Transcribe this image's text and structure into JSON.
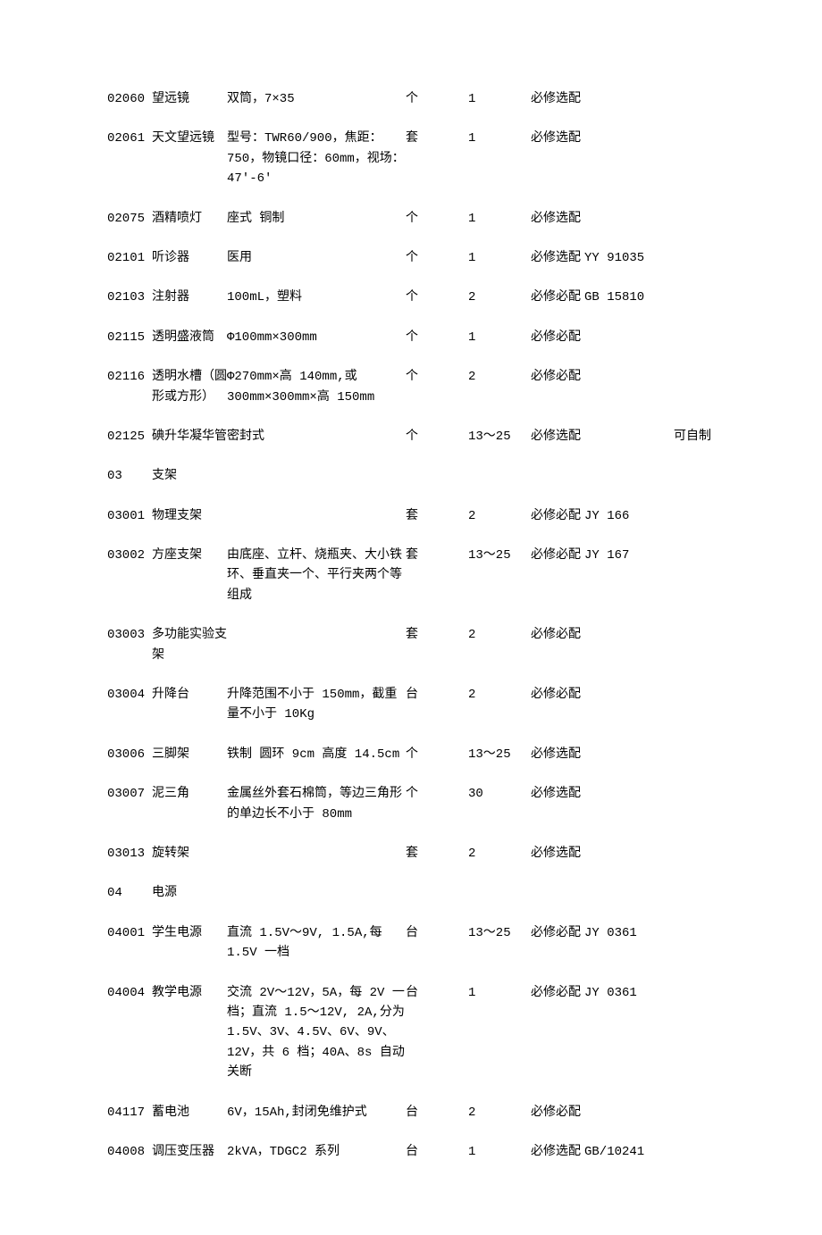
{
  "rows": [
    {
      "code": "02060",
      "name": "望远镜",
      "spec": "双筒，7×35",
      "unit": "个",
      "qty": "1",
      "cat": "必修选配",
      "std": "",
      "note": ""
    },
    {
      "code": "02061",
      "name": "天文望远镜",
      "spec": "型号：TWR60/900，焦距：750，物镜口径：60mm，视场：47'-6'",
      "unit": "套",
      "qty": "1",
      "cat": "必修选配",
      "std": "",
      "note": ""
    },
    {
      "code": "02075",
      "name": "酒精喷灯",
      "spec": "座式 铜制",
      "unit": "个",
      "qty": "1",
      "cat": "必修选配",
      "std": "",
      "note": ""
    },
    {
      "code": "02101",
      "name": "听诊器",
      "spec": "医用",
      "unit": "个",
      "qty": "1",
      "cat": "必修选配",
      "std": "YY 91035",
      "note": ""
    },
    {
      "code": "02103",
      "name": "注射器",
      "spec": "100mL，塑料",
      "unit": "个",
      "qty": "2",
      "cat": "必修必配",
      "std": "GB 15810",
      "note": ""
    },
    {
      "code": "02115",
      "name": "透明盛液筒",
      "spec": "Φ100mm×300mm",
      "unit": "个",
      "qty": "1",
      "cat": "必修必配",
      "std": "",
      "note": ""
    },
    {
      "code": "02116",
      "name": "透明水槽（圆形或方形）",
      "spec": "Φ270mm×高 140mm,或300mm×300mm×高 150mm",
      "unit": "个",
      "qty": "2",
      "cat": "必修必配",
      "std": "",
      "note": ""
    },
    {
      "code": "02125",
      "name": "碘升华凝华管",
      "spec": "密封式",
      "unit": "个",
      "qty": "13～25",
      "cat": "必修选配",
      "std": "",
      "note": "可自制"
    },
    {
      "code": "03",
      "name": "支架",
      "spec": "",
      "unit": "",
      "qty": "",
      "cat": "",
      "std": "",
      "note": "",
      "section": true
    },
    {
      "code": "03001",
      "name": "物理支架",
      "spec": "",
      "unit": "套",
      "qty": "2",
      "cat": "必修必配",
      "std": "JY 166",
      "note": ""
    },
    {
      "code": "03002",
      "name": "方座支架",
      "spec": "由底座、立杆、烧瓶夹、大小铁环、垂直夹一个、平行夹两个等组成",
      "unit": "套",
      "qty": "13～25",
      "cat": "必修必配",
      "std": "JY 167",
      "note": ""
    },
    {
      "code": "03003",
      "name": "多功能实验支架",
      "spec": "",
      "unit": "套",
      "qty": "2",
      "cat": "必修必配",
      "std": "",
      "note": ""
    },
    {
      "code": "03004",
      "name": "升降台",
      "spec": "升降范围不小于 150mm，截重量不小于 10Kg",
      "unit": "台",
      "qty": "2",
      "cat": "必修必配",
      "std": "",
      "note": ""
    },
    {
      "code": "03006",
      "name": "三脚架",
      "spec": "铁制 圆环 9cm 高度 14.5cm",
      "unit": "个",
      "qty": "13～25",
      "cat": "必修选配",
      "std": "",
      "note": ""
    },
    {
      "code": "03007",
      "name": "泥三角",
      "spec": "金属丝外套石棉筒，等边三角形的单边长不小于 80mm",
      "unit": "个",
      "qty": "30",
      "cat": "必修选配",
      "std": "",
      "note": ""
    },
    {
      "code": "03013",
      "name": "旋转架",
      "spec": "",
      "unit": "套",
      "qty": "2",
      "cat": "必修选配",
      "std": "",
      "note": ""
    },
    {
      "code": "04",
      "name": "电源",
      "spec": "",
      "unit": "",
      "qty": "",
      "cat": "",
      "std": "",
      "note": "",
      "section": true
    },
    {
      "code": "04001",
      "name": "学生电源",
      "spec": "直流 1.5V～9V, 1.5A,每 1.5V 一档",
      "unit": "台",
      "qty": "13～25",
      "cat": "必修必配",
      "std": "JY 0361",
      "note": ""
    },
    {
      "code": "04004",
      "name": "教学电源",
      "spec": "交流 2V～12V，5A，每 2V 一档；直流 1.5～12V, 2A,分为 1.5V、3V、4.5V、6V、9V、12V，共 6 档；40A、8s 自动关断",
      "unit": "台",
      "qty": "1",
      "cat": "必修必配",
      "std": "JY 0361",
      "note": ""
    },
    {
      "code": "04117",
      "name": "蓄电池",
      "spec": "6V，15Ah,封闭免维护式",
      "unit": "台",
      "qty": "2",
      "cat": "必修必配",
      "std": "",
      "note": ""
    },
    {
      "code": "04008",
      "name": "调压变压器",
      "spec": "2kVA，TDGC2 系列",
      "unit": "台",
      "qty": "1",
      "cat": "必修选配",
      "std": "GB/10241",
      "note": ""
    }
  ]
}
